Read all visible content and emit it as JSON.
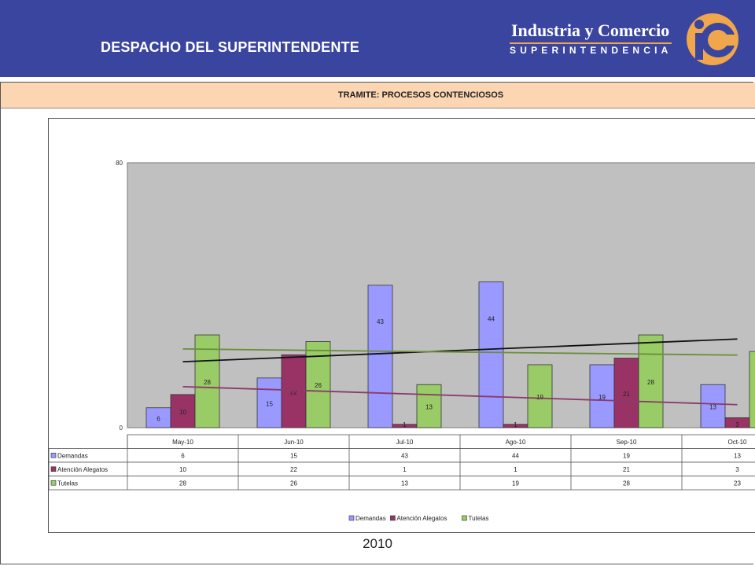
{
  "header": {
    "title": "DESPACHO DEL SUPERINTENDENTE",
    "brand_name": "Industria y Comercio",
    "brand_sub": "SUPERINTENDENCIA"
  },
  "section": {
    "title": "TRAMITE: PROCESOS CONTENCIOSOS",
    "footer": "2010"
  },
  "colors": {
    "header_bg": "#3a45a0",
    "section_bar": "#fcd6b2",
    "plot_bg": "#c0c0c0",
    "logo_orange": "#f0a64a"
  },
  "chart_data": {
    "type": "bar",
    "title": "",
    "xlabel": "",
    "ylabel": "",
    "ylim": [
      0,
      80
    ],
    "y_ticks": [
      0,
      80
    ],
    "categories": [
      "May-10",
      "Jun-10",
      "Jul-10",
      "Ago-10",
      "Sep-10",
      "Oct-10"
    ],
    "series": [
      {
        "name": "Demandas",
        "color": "#9999ff",
        "values": [
          6,
          15,
          43,
          44,
          19,
          13
        ]
      },
      {
        "name": "Atención Alegatos",
        "color": "#993366",
        "values": [
          10,
          22,
          1,
          1,
          21,
          3
        ]
      },
      {
        "name": "Tutelas",
        "color": "#99cc66",
        "values": [
          28,
          26,
          13,
          19,
          28,
          23
        ]
      }
    ],
    "trendlines": [
      {
        "series": "Demandas",
        "color": "#111111"
      },
      {
        "series": "Atención Alegatos",
        "color": "#8b3a6b"
      },
      {
        "series": "Tutelas",
        "color": "#6b8e3a"
      }
    ],
    "data_table": true,
    "legend_position": "bottom",
    "grid": false
  }
}
